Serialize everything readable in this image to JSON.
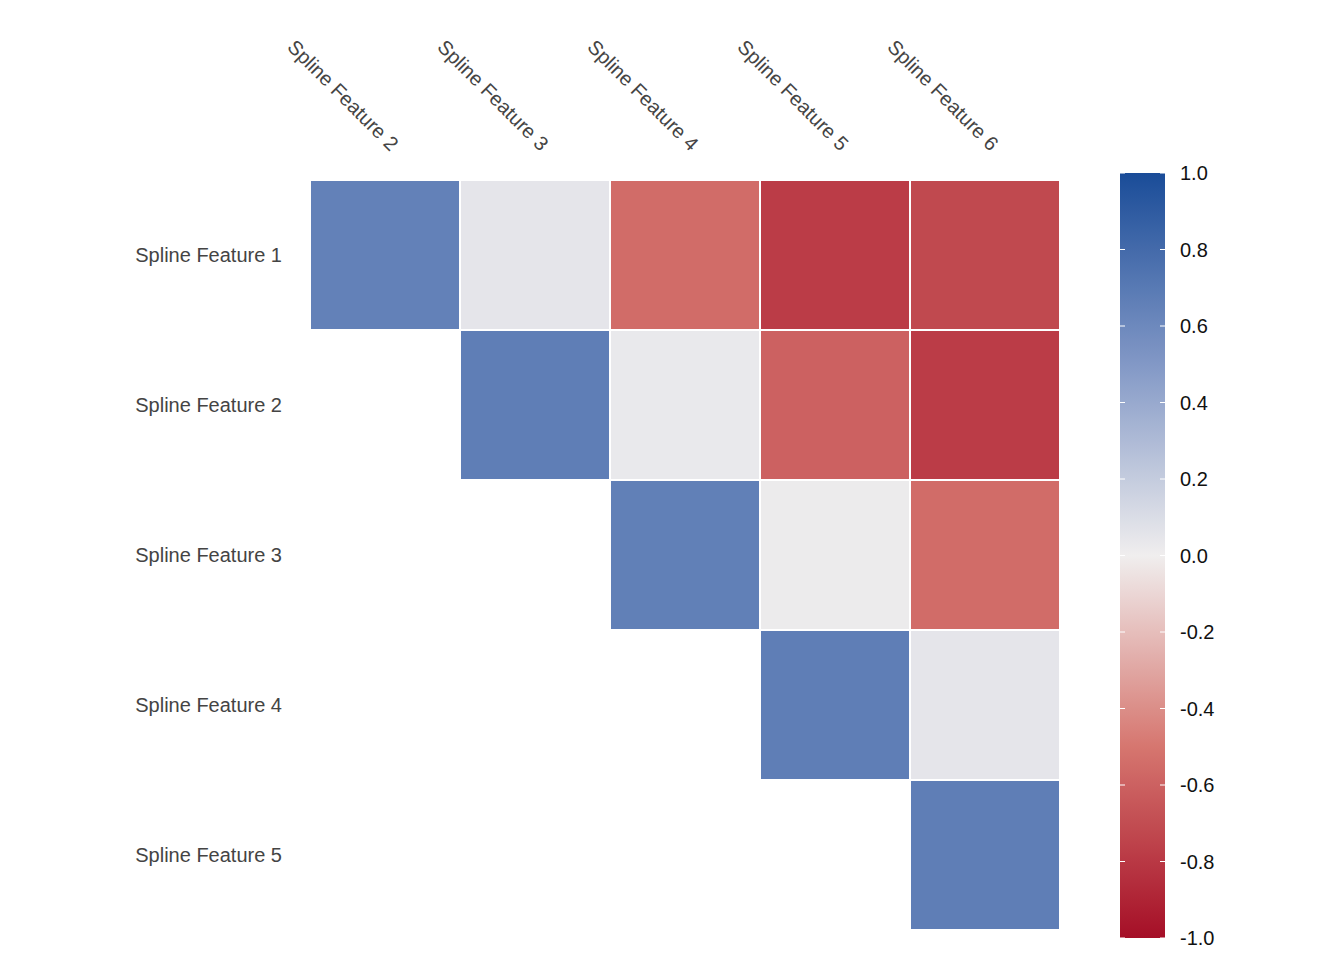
{
  "chart_data": {
    "type": "heatmap",
    "rows": [
      "Spline Feature 1",
      "Spline Feature 2",
      "Spline Feature 3",
      "Spline Feature 4",
      "Spline Feature 5"
    ],
    "columns": [
      "Spline Feature 2",
      "Spline Feature 3",
      "Spline Feature 4",
      "Spline Feature 5",
      "Spline Feature 6"
    ],
    "cells": [
      [
        0.65,
        0.05,
        -0.55,
        -0.78,
        -0.72
      ],
      [
        null,
        0.67,
        0.03,
        -0.6,
        -0.78
      ],
      [
        null,
        null,
        0.66,
        0.02,
        -0.55
      ],
      [
        null,
        null,
        null,
        0.67,
        0.05
      ],
      [
        null,
        null,
        null,
        null,
        0.67
      ]
    ],
    "colorbar": {
      "range": [
        -1,
        1
      ],
      "ticks": [
        {
          "value": 1,
          "label": "1.0"
        },
        0.8,
        0.6,
        0.4,
        0.2,
        {
          "value": 0,
          "label": "0.0"
        },
        -0.2,
        -0.4,
        -0.6,
        -0.8,
        {
          "value": -1,
          "label": "-1.0"
        }
      ]
    }
  }
}
